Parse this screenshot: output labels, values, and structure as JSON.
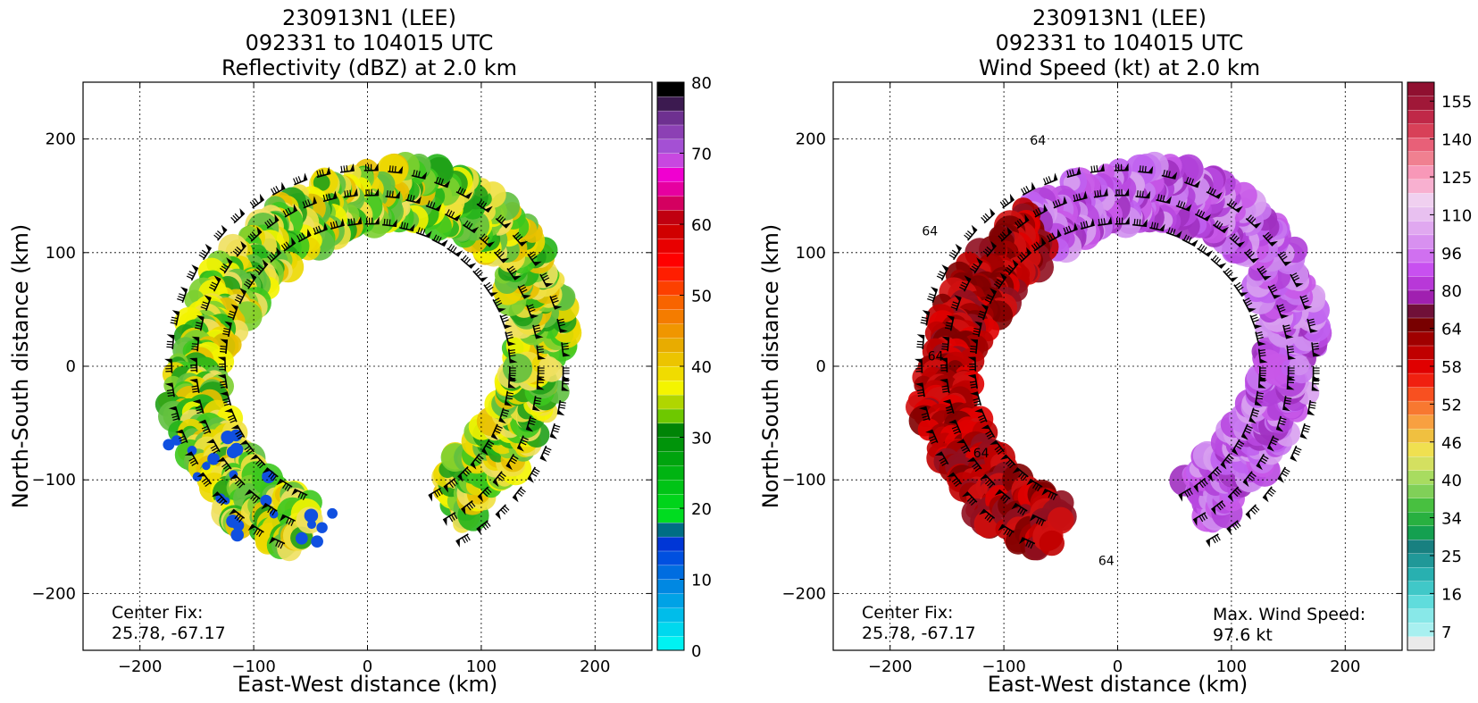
{
  "chart_data": [
    {
      "type": "heatmap",
      "title": [
        "230913N1 (LEE)",
        "092331 to 104015 UTC",
        "Reflectivity (dBZ) at 2.0 km"
      ],
      "xlabel": "East-West distance (km)",
      "ylabel": "North-South distance (km)",
      "xlim": [
        -250,
        250
      ],
      "ylim": [
        -250,
        250
      ],
      "xticks": [
        -200,
        -100,
        0,
        100,
        200
      ],
      "yticks": [
        -200,
        -100,
        0,
        100,
        200
      ],
      "grid": true,
      "annotation": [
        "Center Fix:",
        "25.78, -67.17"
      ],
      "colorbar": {
        "ticks": [
          "0",
          "10",
          "20",
          "30",
          "40",
          "50",
          "60",
          "70",
          "80"
        ],
        "colors": [
          "#00f2f2",
          "#00d8ee",
          "#00bdea",
          "#00a2e6",
          "#0088e2",
          "#006de0",
          "#0050e0",
          "#0036d6",
          "#006e84",
          "#00dc20",
          "#00d41a",
          "#00c416",
          "#00b412",
          "#00a40e",
          "#00940a",
          "#008406",
          "#6ec800",
          "#b0d600",
          "#f4f400",
          "#f0dc00",
          "#ecc400",
          "#e8ac00",
          "#f09600",
          "#f47c00",
          "#f86400",
          "#fc4000",
          "#ff1e00",
          "#ff0000",
          "#e80000",
          "#d00000",
          "#c00010",
          "#d40060",
          "#e600a0",
          "#f000d0",
          "#c848e0",
          "#a450d4",
          "#8c40b4",
          "#6e3090",
          "#3c1a50",
          "#000000"
        ]
      },
      "barbs": "wind barbs overlaid on the annular rainband",
      "field": "annular ring of reflectivity, mostly green/yellow (20–40 dBZ) with scattered blue (~10 dBZ) cells"
    },
    {
      "type": "heatmap",
      "title": [
        "230913N1 (LEE)",
        "092331 to 104015 UTC",
        "Wind Speed (kt) at 2.0 km"
      ],
      "xlabel": "East-West distance (km)",
      "ylabel": "North-South distance (km)",
      "xlim": [
        -250,
        250
      ],
      "ylim": [
        -250,
        250
      ],
      "xticks": [
        -200,
        -100,
        0,
        100,
        200
      ],
      "yticks": [
        -200,
        -100,
        0,
        100,
        200
      ],
      "grid": true,
      "annotation": [
        "Center Fix:",
        "25.78, -67.17"
      ],
      "annotation2": [
        "Max. Wind Speed:",
        "97.6 kt"
      ],
      "max_wind_speed_kt": 97.6,
      "contour_labels": [
        "64",
        "64",
        "64",
        "64",
        "64"
      ],
      "colorbar": {
        "ticks": [
          "7",
          "16",
          "25",
          "34",
          "40",
          "46",
          "52",
          "58",
          "64",
          "80",
          "96",
          "110",
          "125",
          "140",
          "155"
        ],
        "colors": [
          "#eaeaea",
          "#a8f0f0",
          "#88e8e8",
          "#60dcdc",
          "#40c8c8",
          "#28b0b0",
          "#209898",
          "#188080",
          "#14a050",
          "#28b040",
          "#48c040",
          "#80d058",
          "#a8dc60",
          "#d4e060",
          "#f0e050",
          "#f0c040",
          "#f8a040",
          "#f87830",
          "#f85020",
          "#f02010",
          "#e00000",
          "#c00000",
          "#a00000",
          "#780000",
          "#701038",
          "#a020b0",
          "#b838d8",
          "#c850f0",
          "#d070f0",
          "#d890f0",
          "#e0a8f0",
          "#e8c0f0",
          "#f0d0f0",
          "#f8b0d0",
          "#f898b8",
          "#f08090",
          "#e86078",
          "#d84058",
          "#c02848",
          "#a01838",
          "#901030"
        ]
      },
      "barbs": "wind barbs overlaid on the annular rainband",
      "field": "annular ring of wind speed, dark red (55–65 kt) on the western side, purple/lavender (65–98 kt) elsewhere"
    }
  ]
}
